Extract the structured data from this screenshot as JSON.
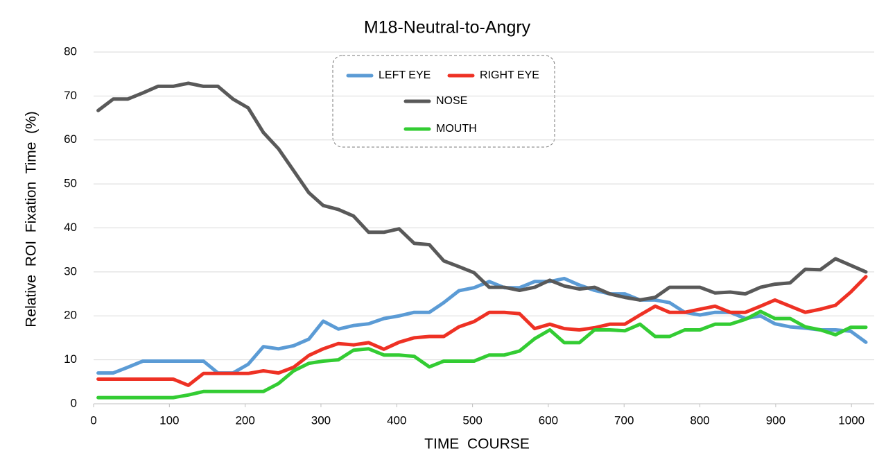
{
  "chart_data": {
    "type": "line",
    "title": "M18-Neutral-to-Angry",
    "x_label": "TIME  COURSE",
    "y_label": "Relative  ROI  Fixation  Time  (%)",
    "x": [
      6,
      26,
      45,
      65,
      85,
      105,
      125,
      145,
      164,
      184,
      204,
      224,
      244,
      264,
      284,
      303,
      323,
      343,
      363,
      383,
      403,
      423,
      443,
      462,
      482,
      502,
      522,
      542,
      562,
      582,
      602,
      621,
      641,
      661,
      681,
      701,
      721,
      741,
      760,
      780,
      800,
      820,
      840,
      860,
      880,
      899,
      919,
      939,
      959,
      979,
      999,
      1019
    ],
    "series": [
      {
        "name": "LEFT EYE",
        "color": "#5b9bd5",
        "values": [
          7,
          7,
          8.3,
          9.7,
          9.7,
          9.7,
          9.7,
          9.7,
          7,
          7,
          9,
          13,
          12.5,
          13.2,
          14.7,
          18.8,
          17,
          17.8,
          18.2,
          19.4,
          20,
          20.8,
          20.8,
          23,
          25.7,
          26.4,
          27.8,
          26.4,
          26.4,
          27.8,
          27.8,
          28.5,
          27,
          25.8,
          25,
          25,
          23.6,
          23.6,
          23,
          20.8,
          20.2,
          20.8,
          20.8,
          19.4,
          20,
          18.2,
          17.5,
          17.2,
          16.8,
          16.8,
          16.5,
          14
        ]
      },
      {
        "name": "RIGHT EYE",
        "color": "#ee3124",
        "values": [
          5.6,
          5.6,
          5.6,
          5.6,
          5.6,
          5.6,
          4.2,
          6.9,
          6.9,
          6.9,
          6.9,
          7.5,
          7,
          8.3,
          11,
          12.5,
          13.7,
          13.4,
          13.9,
          12.4,
          14,
          15,
          15.3,
          15.3,
          17.5,
          18.7,
          20.8,
          20.8,
          20.5,
          17.1,
          18.1,
          17.1,
          16.8,
          17.3,
          18.1,
          18.1,
          20.2,
          22.2,
          20.8,
          20.8,
          21.5,
          22.2,
          20.8,
          20.8,
          22.2,
          23.6,
          22.2,
          20.8,
          21.5,
          22.4,
          25.4,
          28.9
        ]
      },
      {
        "name": "NOSE",
        "color": "#595959",
        "values": [
          66.7,
          69.3,
          69.3,
          70.7,
          72.2,
          72.2,
          72.9,
          72.2,
          72.2,
          69.3,
          67.3,
          61.7,
          58,
          53,
          48,
          45.1,
          44.2,
          42.7,
          39,
          39,
          39.8,
          36.5,
          36.2,
          32.5,
          31.2,
          29.8,
          26.5,
          26.5,
          25.8,
          26.5,
          28.1,
          26.8,
          26.1,
          26.5,
          25,
          24.2,
          23.6,
          24.2,
          26.5,
          26.5,
          26.5,
          25.2,
          25.4,
          25,
          26.5,
          27.2,
          27.5,
          30.6,
          30.5,
          33,
          31.5,
          30
        ]
      },
      {
        "name": "MOUTH",
        "color": "#33cc33",
        "values": [
          1.4,
          1.4,
          1.4,
          1.4,
          1.4,
          1.4,
          2,
          2.8,
          2.8,
          2.8,
          2.8,
          2.8,
          4.6,
          7.5,
          9.2,
          9.7,
          10,
          12.2,
          12.5,
          11.1,
          11.1,
          10.8,
          8.4,
          9.7,
          9.7,
          9.7,
          11.1,
          11.1,
          12,
          14.8,
          16.8,
          13.9,
          13.9,
          16.8,
          16.8,
          16.6,
          18.1,
          15.3,
          15.3,
          16.8,
          16.8,
          18.1,
          18.1,
          19.2,
          21,
          19.4,
          19.4,
          17.5,
          16.8,
          15.7,
          17.4,
          17.4
        ]
      }
    ],
    "xlim": [
      0,
      1030
    ],
    "xticks": [
      0,
      100,
      200,
      300,
      400,
      500,
      600,
      700,
      800,
      900,
      1000
    ],
    "ylim": [
      0,
      80
    ],
    "yticks": [
      0,
      10,
      20,
      30,
      40,
      50,
      60,
      70,
      80
    ],
    "grid": true
  }
}
